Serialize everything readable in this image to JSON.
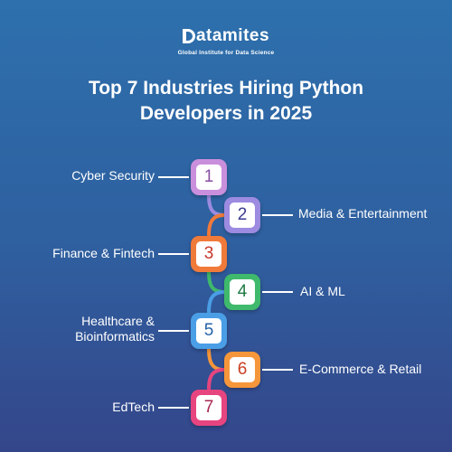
{
  "brand": {
    "name_initial": "D",
    "name_rest": "atamites",
    "tagline": "Global Institute for Data Science"
  },
  "title": {
    "line1": "Top 7 Industries Hiring Python",
    "line2": "Developers in 2025"
  },
  "steps": [
    {
      "number": "1",
      "label": "Cyber Security",
      "side": "left",
      "color": "#c98fdc",
      "text_color": "#8a4fa3"
    },
    {
      "number": "2",
      "label": "Media & Entertainment",
      "side": "right",
      "color": "#9c8be0",
      "text_color": "#3b3a90"
    },
    {
      "number": "3",
      "label": "Finance & Fintech",
      "side": "left",
      "color": "#f07a3a",
      "text_color": "#c7372a"
    },
    {
      "number": "4",
      "label": "AI & ML",
      "side": "right",
      "color": "#3fb96b",
      "text_color": "#1e7a44"
    },
    {
      "number": "5",
      "label": "Healthcare &\nBioinformatics",
      "side": "left",
      "color": "#4a9ee6",
      "text_color": "#2463a8"
    },
    {
      "number": "6",
      "label": "E-Commerce & Retail",
      "side": "right",
      "color": "#f5963a",
      "text_color": "#c93f22"
    },
    {
      "number": "7",
      "label": "EdTech",
      "side": "left",
      "color": "#e6457f",
      "text_color": "#a82652"
    }
  ]
}
